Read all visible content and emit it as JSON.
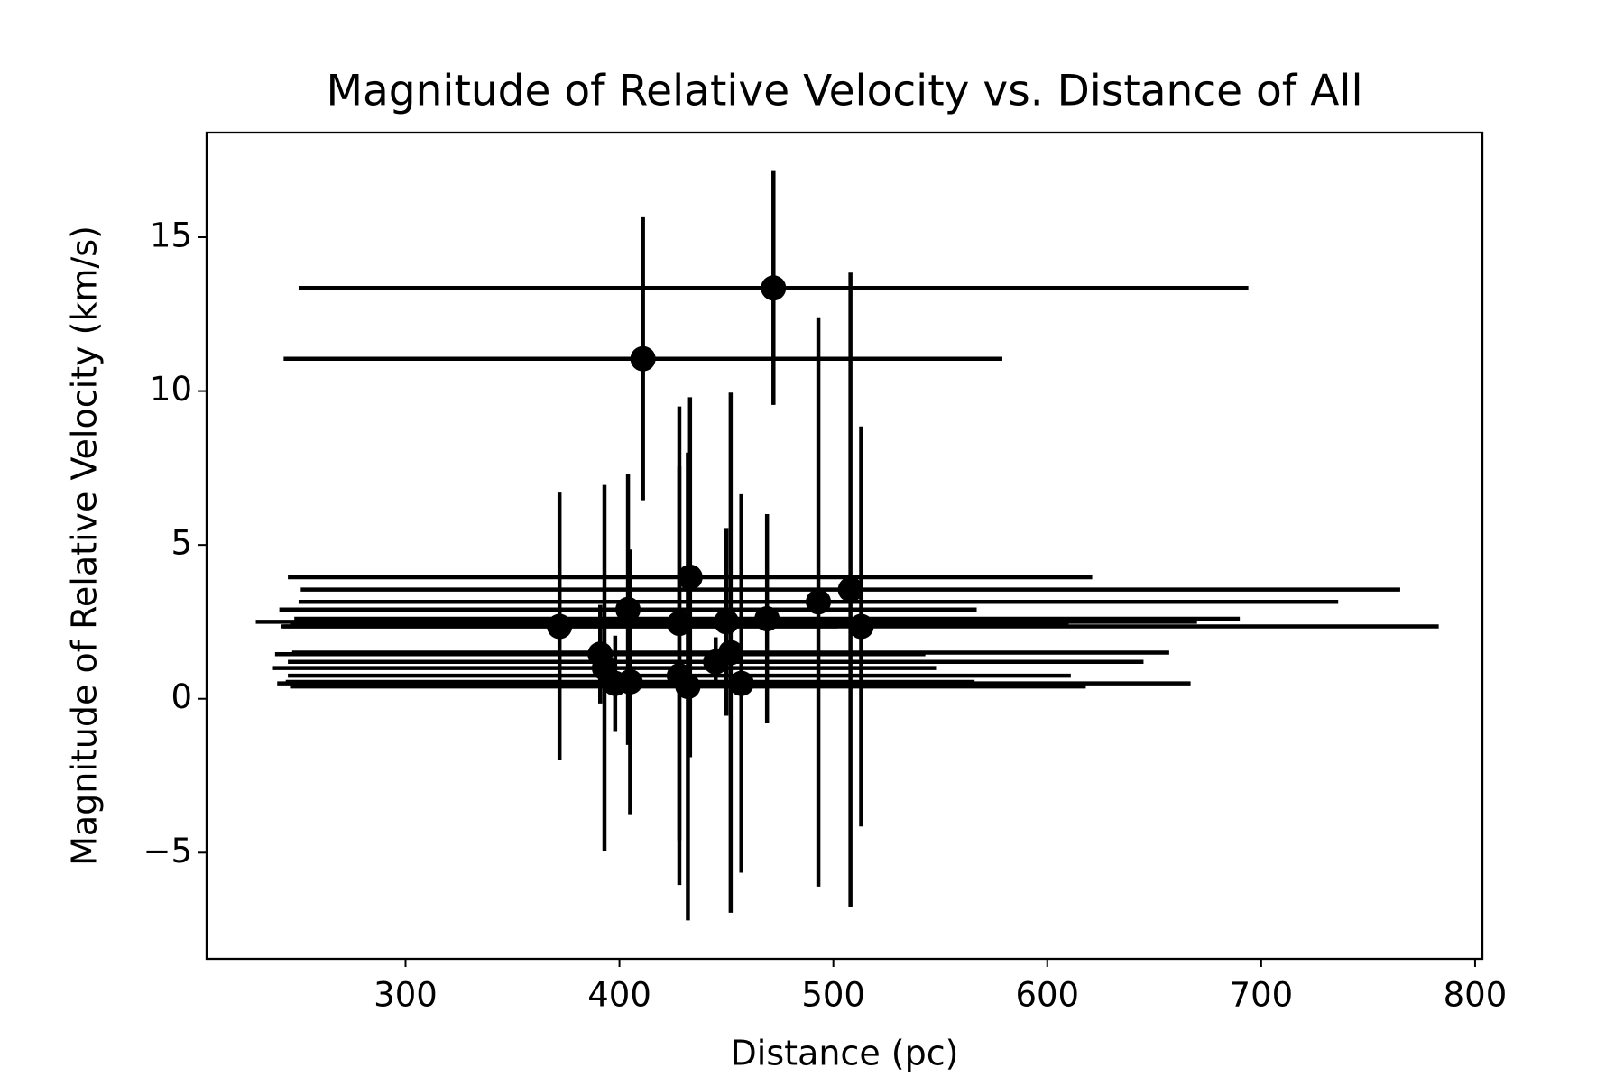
{
  "chart_data": {
    "type": "errorbar-scatter",
    "title": "Magnitude of Relative Velocity vs. Distance of All",
    "x_label": "Distance (pc)",
    "y_label": "Magnitude of Relative Velocity (km/s)",
    "xlim": [
      207,
      803.4
    ],
    "ylim": [
      -8.45,
      18.4
    ],
    "xticks": [
      300,
      400,
      500,
      600,
      700,
      800
    ],
    "yticks": [
      {
        "value": -5,
        "label": "−5"
      },
      0,
      5,
      10,
      15
    ],
    "grid": false,
    "series": [
      {
        "color": "#000000",
        "x": [
          472,
          411,
          372,
          391,
          393,
          398,
          404,
          405,
          428,
          428,
          432,
          433,
          445,
          450,
          452,
          457,
          469,
          493,
          508,
          513
        ],
        "values": [
          13.35,
          11.05,
          2.35,
          1.45,
          1.0,
          0.5,
          2.9,
          0.55,
          2.45,
          0.75,
          0.4,
          3.95,
          1.2,
          2.5,
          1.5,
          0.5,
          2.6,
          3.15,
          3.55,
          2.35
        ],
        "xerr": [
          222,
          168,
          130,
          152,
          155,
          158,
          163,
          161,
          182,
          183,
          186,
          188,
          200,
          220,
          205,
          210,
          221,
          243,
          257,
          270
        ],
        "yerr": [
          3.8,
          4.6,
          4.35,
          1.6,
          5.95,
          1.55,
          4.4,
          4.3,
          7.05,
          6.8,
          7.6,
          5.85,
          0.8,
          3.05,
          8.45,
          6.15,
          3.4,
          9.25,
          10.3,
          6.5
        ]
      }
    ]
  }
}
